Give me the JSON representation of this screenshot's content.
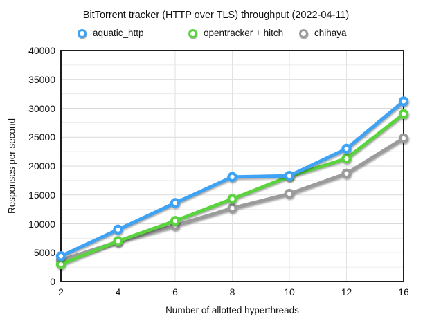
{
  "title": "BitTorrent tracker (HTTP over TLS) throughput (2022-04-11)",
  "axis_titles": {
    "y": "Responses per second",
    "x": "Number of allotted hyperthreads"
  },
  "chart_data": {
    "type": "line",
    "title": "BitTorrent tracker (HTTP over TLS) throughput (2022-04-11)",
    "xlabel": "Number of allotted hyperthreads",
    "ylabel": "Responses per second",
    "categories": [
      2,
      4,
      6,
      8,
      10,
      12,
      16
    ],
    "x_tick_labels": [
      "2",
      "4",
      "6",
      "8",
      "10",
      "12",
      "16"
    ],
    "y_tick_labels": [
      "0",
      "5000",
      "10000",
      "15000",
      "20000",
      "25000",
      "30000",
      "35000",
      "40000"
    ],
    "ylim": [
      0,
      40000
    ],
    "y_major_step": 5000,
    "y_minor_step": 2500,
    "grid": true,
    "legend_position": "top",
    "marker_style": "ring",
    "series": [
      {
        "name": "aquatic_http",
        "color": "#3EA2F5",
        "values": [
          4400,
          9000,
          13600,
          18100,
          18300,
          23000,
          31200
        ]
      },
      {
        "name": "opentracker + hitch",
        "color": "#5BD33E",
        "values": [
          3000,
          7000,
          10500,
          14300,
          18200,
          21300,
          29000
        ]
      },
      {
        "name": "chihaya",
        "color": "#9B9B9B",
        "values": [
          3700,
          6900,
          9700,
          12700,
          15200,
          18700,
          24800
        ]
      }
    ]
  },
  "style_colors": {
    "plot_border": "#1c1c1c",
    "grid_major": "#d9d9d9",
    "grid_minor": "#ececec",
    "grid_vertical": "#e2e2e2",
    "background": "#ffffff"
  }
}
